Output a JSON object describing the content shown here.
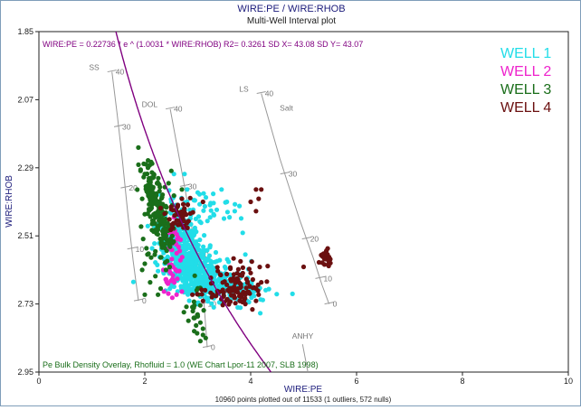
{
  "chart_data": {
    "type": "scatter",
    "title": "WIRE:PE / WIRE:RHOB",
    "subtitle": "Multi-Well Interval plot",
    "xlabel": "WIRE:PE",
    "ylabel": "WIRE:RHOB",
    "xlim": [
      0,
      10
    ],
    "ylim": [
      2.95,
      1.85
    ],
    "y_inverted": true,
    "x_ticks": [
      "0",
      "2",
      "4",
      "6",
      "8",
      "10"
    ],
    "y_ticks": [
      "1.85",
      "2.07",
      "2.29",
      "2.51",
      "2.73",
      "2.95"
    ],
    "grid": false,
    "legend_placement": "top-right",
    "regression": {
      "label": "WIRE:PE = 0.22736 * e ^ (1.0031 * WIRE:RHOB)   R2= 0.3261 SD X= 43.08 SD Y= 43.07",
      "a": 0.22736,
      "b": 1.0031,
      "color": "#800080"
    },
    "overlay_label": "Pe Bulk Density Overlay, Rhofluid = 1.0 (WE Chart Lpor-11 2007, SLB 1998)",
    "footer": "10960 points plotted out of 11533 (1 outliers, 572 nulls)",
    "series": [
      {
        "name": "WELL 1",
        "color": "#22dde8",
        "clusters": [
          {
            "cx": 2.85,
            "cy": 2.6,
            "sx": 0.3,
            "sy": 0.055,
            "n": 420,
            "rho": 0.55
          },
          {
            "cx": 3.35,
            "cy": 2.67,
            "sx": 0.45,
            "sy": 0.03,
            "n": 220,
            "rho": 0.3
          },
          {
            "cx": 2.7,
            "cy": 2.49,
            "sx": 0.18,
            "sy": 0.04,
            "n": 90,
            "rho": 0.2
          },
          {
            "cx": 3.1,
            "cy": 2.42,
            "sx": 0.3,
            "sy": 0.04,
            "n": 35,
            "rho": 0.1
          }
        ],
        "points": [
          [
            2.55,
            2.31
          ],
          [
            2.75,
            2.31
          ],
          [
            2.8,
            2.36
          ],
          [
            3.45,
            2.36
          ],
          [
            3.55,
            2.4
          ],
          [
            3.6,
            2.45
          ],
          [
            3.3,
            2.44
          ],
          [
            2.5,
            2.43
          ],
          [
            3.85,
            2.5
          ],
          [
            3.7,
            2.43
          ],
          [
            2.8,
            2.4
          ],
          [
            3.0,
            2.37
          ],
          [
            3.9,
            2.57
          ],
          [
            2.5,
            2.4
          ]
        ]
      },
      {
        "name": "WELL 2",
        "color": "#ee22cc",
        "clusters": [
          {
            "cx": 2.55,
            "cy": 2.55,
            "sx": 0.1,
            "sy": 0.05,
            "n": 26,
            "rho": 0.2
          },
          {
            "cx": 2.5,
            "cy": 2.63,
            "sx": 0.1,
            "sy": 0.04,
            "n": 14,
            "rho": 0.1
          }
        ],
        "points": [
          [
            2.35,
            2.62
          ],
          [
            2.4,
            2.65
          ],
          [
            2.55,
            2.45
          ],
          [
            2.6,
            2.7
          ],
          [
            2.52,
            2.71
          ],
          [
            2.7,
            2.69
          ],
          [
            2.45,
            2.5
          ]
        ]
      },
      {
        "name": "WELL 3",
        "color": "#1a6e1a",
        "clusters": [
          {
            "cx": 2.2,
            "cy": 2.4,
            "sx": 0.12,
            "sy": 0.07,
            "n": 130,
            "rho": 0.6
          },
          {
            "cx": 2.35,
            "cy": 2.5,
            "sx": 0.1,
            "sy": 0.05,
            "n": 60,
            "rho": 0.3
          },
          {
            "cx": 3.0,
            "cy": 2.745,
            "sx": 0.12,
            "sy": 0.04,
            "n": 22,
            "rho": 0.0
          }
        ],
        "points": [
          [
            1.88,
            2.28
          ],
          [
            1.92,
            2.3
          ],
          [
            1.98,
            2.32
          ],
          [
            2.02,
            2.35
          ],
          [
            2.06,
            2.29
          ],
          [
            2.1,
            2.34
          ],
          [
            1.95,
            2.39
          ],
          [
            2.0,
            2.44
          ],
          [
            2.2,
            2.56
          ],
          [
            2.3,
            2.58
          ],
          [
            2.05,
            2.57
          ],
          [
            2.0,
            2.6
          ],
          [
            1.95,
            2.62
          ],
          [
            2.1,
            2.66
          ],
          [
            2.0,
            2.7
          ],
          [
            2.3,
            2.68
          ],
          [
            2.2,
            2.64
          ],
          [
            2.4,
            2.62
          ],
          [
            2.25,
            2.7
          ],
          [
            2.9,
            2.74
          ],
          [
            3.0,
            2.77
          ],
          [
            3.05,
            2.79
          ],
          [
            3.1,
            2.81
          ],
          [
            3.1,
            2.83
          ],
          [
            3.05,
            2.85
          ],
          [
            3.15,
            2.84
          ],
          [
            2.5,
            2.3
          ],
          [
            2.45,
            2.34
          ],
          [
            2.7,
            2.36
          ],
          [
            2.55,
            2.38
          ],
          [
            2.6,
            2.42
          ],
          [
            2.4,
            2.49
          ],
          [
            2.3,
            2.46
          ],
          [
            1.93,
            2.48
          ],
          [
            1.97,
            2.52
          ],
          [
            2.03,
            2.55
          ],
          [
            2.12,
            2.58
          ]
        ]
      },
      {
        "name": "WELL 4",
        "color": "#6b1010",
        "clusters": [
          {
            "cx": 2.7,
            "cy": 2.44,
            "sx": 0.12,
            "sy": 0.025,
            "n": 45,
            "rho": 0.0
          },
          {
            "cx": 3.8,
            "cy": 2.65,
            "sx": 0.25,
            "sy": 0.03,
            "n": 60,
            "rho": 0.2
          },
          {
            "cx": 3.55,
            "cy": 2.7,
            "sx": 0.25,
            "sy": 0.018,
            "n": 40,
            "rho": 0.0
          },
          {
            "cx": 5.42,
            "cy": 2.58,
            "sx": 0.06,
            "sy": 0.012,
            "n": 28,
            "rho": 0.0
          }
        ],
        "points": [
          [
            4.1,
            2.43
          ],
          [
            4.15,
            2.39
          ],
          [
            4.2,
            2.36
          ],
          [
            4.1,
            2.36
          ],
          [
            4.0,
            2.4
          ],
          [
            2.6,
            2.43
          ],
          [
            3.1,
            2.4
          ],
          [
            4.0,
            2.63
          ],
          [
            4.1,
            2.68
          ],
          [
            4.2,
            2.66
          ],
          [
            4.15,
            2.7
          ],
          [
            4.1,
            2.72
          ],
          [
            3.9,
            2.7
          ],
          [
            3.6,
            2.69
          ],
          [
            3.7,
            2.71
          ],
          [
            3.8,
            2.72
          ],
          [
            3.9,
            2.73
          ],
          [
            2.9,
            2.7
          ],
          [
            3.1,
            2.72
          ],
          [
            2.7,
            2.39
          ],
          [
            5.0,
            2.61
          ],
          [
            2.3,
            2.42
          ]
        ]
      }
    ],
    "lithology_lines": [
      {
        "name": "SS",
        "color": "#999999",
        "ticks": [
          "40",
          "30",
          "20",
          "10",
          "0"
        ],
        "points": [
          [
            1.38,
            1.98
          ],
          [
            1.48,
            2.12
          ],
          [
            1.58,
            2.27
          ],
          [
            1.68,
            2.44
          ],
          [
            1.78,
            2.59
          ],
          [
            1.88,
            2.72
          ]
        ]
      },
      {
        "name": "DOL",
        "color": "#999999",
        "ticks": [
          "40",
          "30",
          "20",
          "10",
          "0"
        ],
        "points": [
          [
            2.48,
            2.1
          ],
          [
            2.75,
            2.35
          ],
          [
            2.98,
            2.57
          ],
          [
            3.12,
            2.73
          ],
          [
            3.18,
            2.87
          ]
        ]
      },
      {
        "name": "LS",
        "color": "#999999",
        "ticks": [
          "40",
          "30",
          "20",
          "10",
          "0"
        ],
        "points": [
          [
            4.2,
            2.05
          ],
          [
            4.55,
            2.26
          ],
          [
            4.93,
            2.46
          ],
          [
            5.18,
            2.58
          ],
          [
            5.35,
            2.67
          ],
          [
            5.48,
            2.73
          ]
        ]
      },
      {
        "name": "ANHY",
        "color": "#999999",
        "ticks": [],
        "points": [
          [
            4.98,
            2.86
          ],
          [
            5.08,
            2.95
          ]
        ]
      }
    ],
    "salt_label": "Salt"
  }
}
